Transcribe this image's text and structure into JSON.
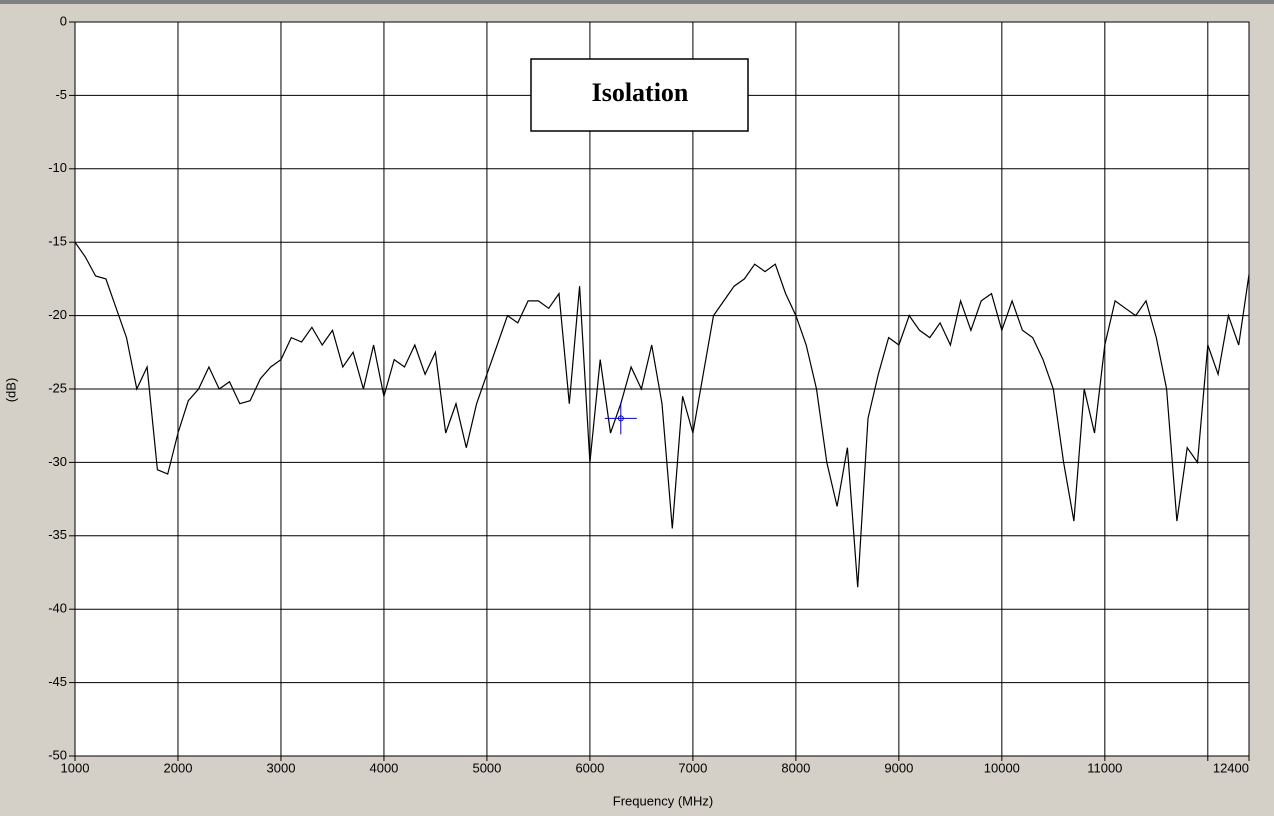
{
  "chart_data": {
    "type": "line",
    "title": "Isolation",
    "x_label": "Frequency (MHz)",
    "y_label": "(dB)",
    "xlim": [
      1000,
      12400
    ],
    "ylim": [
      -50,
      0
    ],
    "xticks": [
      1000,
      2000,
      3000,
      4000,
      5000,
      6000,
      7000,
      8000,
      9000,
      10000,
      11000,
      {
        "value": 12000,
        "label": null
      },
      12400
    ],
    "yticks": [
      0,
      -5,
      -10,
      -15,
      -20,
      -25,
      -30,
      -35,
      -40,
      -45,
      -50
    ],
    "grid": true,
    "cursor": {
      "x": 6300,
      "y": -27,
      "color": "#0000cc"
    },
    "series": [
      {
        "color": "#000000",
        "x": [
          1000,
          1100,
          1200,
          1300,
          1400,
          1500,
          1600,
          1700,
          1800,
          1900,
          2000,
          2100,
          2200,
          2300,
          2400,
          2500,
          2600,
          2700,
          2800,
          2900,
          3000,
          3100,
          3200,
          3300,
          3400,
          3500,
          3600,
          3700,
          3800,
          3900,
          4000,
          4100,
          4200,
          4300,
          4400,
          4500,
          4600,
          4700,
          4800,
          4900,
          5000,
          5100,
          5200,
          5300,
          5400,
          5500,
          5600,
          5700,
          5800,
          5900,
          6000,
          6100,
          6200,
          6300,
          6400,
          6500,
          6600,
          6700,
          6800,
          6900,
          7000,
          7100,
          7200,
          7300,
          7400,
          7500,
          7600,
          7700,
          7800,
          7900,
          8000,
          8100,
          8200,
          8300,
          8400,
          8500,
          8600,
          8700,
          8800,
          8900,
          9000,
          9100,
          9200,
          9300,
          9400,
          9500,
          9600,
          9700,
          9800,
          9900,
          10000,
          10100,
          10200,
          10300,
          10400,
          10500,
          10600,
          10700,
          10800,
          10900,
          11000,
          11100,
          11200,
          11300,
          11400,
          11500,
          11600,
          11700,
          11800,
          11900,
          12000,
          12100,
          12200,
          12300,
          12400
        ],
        "values": [
          -15,
          -16,
          -17.3,
          -17.5,
          -19.5,
          -21.5,
          -25,
          -23.5,
          -30.5,
          -30.8,
          -28,
          -25.8,
          -25,
          -23.5,
          -25,
          -24.5,
          -26,
          -25.8,
          -24.3,
          -23.5,
          -23,
          -21.5,
          -21.8,
          -20.8,
          -22,
          -21,
          -23.5,
          -22.5,
          -25,
          -22,
          -25.5,
          -23,
          -23.5,
          -22,
          -24,
          -22.5,
          -28,
          -26,
          -29,
          -26,
          -24,
          -22,
          -20,
          -20.5,
          -19,
          -19,
          -19.5,
          -18.5,
          -26,
          -18,
          -30,
          -23,
          -28,
          -26,
          -23.5,
          -25,
          -22,
          -26,
          -34.5,
          -25.5,
          -28,
          -24,
          -20,
          -19,
          -18,
          -17.5,
          -16.5,
          -17,
          -16.5,
          -18.5,
          -20,
          -22,
          -25,
          -30,
          -33,
          -29,
          -38.5,
          -27,
          -24,
          -21.5,
          -22,
          -20,
          -21,
          -21.5,
          -20.5,
          -22,
          -19,
          -21,
          -19,
          -18.5,
          -21,
          -19,
          -21,
          -21.5,
          -23,
          -25,
          -30,
          -34,
          -25,
          -28,
          -22,
          -19,
          -19.5,
          -20,
          -19,
          -21.5,
          -25,
          -34,
          -29,
          -30,
          -22,
          -24,
          -20,
          -22,
          -17.2
        ]
      }
    ]
  }
}
